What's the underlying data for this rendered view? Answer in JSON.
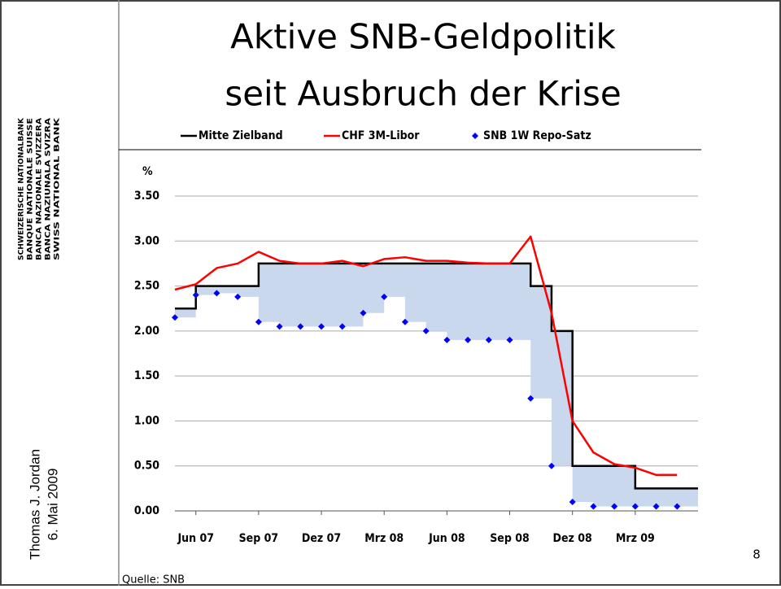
{
  "slide": {
    "logo": [
      "SCHWEIZERISCHE NATIONALBANK",
      "BANQUE NATIONALE SUISSE",
      "BANCA NAZIONALE SVIZZERA",
      "BANCA NAZIUNALA SVIZRA",
      "SWISS NATIONAL BANK"
    ],
    "author": "Thomas J. Jordan",
    "date": "6. Mai 2009",
    "page": "8",
    "source": "Quelle: SNB"
  },
  "chart_data": {
    "type": "line",
    "title": [
      "Aktive SNB-Geldpolitik",
      "seit Ausbruch der Krise"
    ],
    "ylabel": "%",
    "x": [
      "2007-05",
      "2007-06",
      "2007-07",
      "2007-08",
      "2007-09",
      "2007-10",
      "2007-11",
      "2007-12",
      "2008-01",
      "2008-02",
      "2008-03",
      "2008-04",
      "2008-05",
      "2008-06",
      "2008-07",
      "2008-08",
      "2008-09",
      "2008-10",
      "2008-11",
      "2008-12",
      "2009-01",
      "2009-02",
      "2009-03",
      "2009-04",
      "2009-05"
    ],
    "xlim": [
      "2007-05",
      "2009-06"
    ],
    "xticks": [
      {
        "value": "2007-06",
        "label": "Jun 07"
      },
      {
        "value": "2007-09",
        "label": "Sep 07"
      },
      {
        "value": "2007-12",
        "label": "Dez 07"
      },
      {
        "value": "2008-03",
        "label": "Mrz 08"
      },
      {
        "value": "2008-06",
        "label": "Jun 08"
      },
      {
        "value": "2008-09",
        "label": "Sep 08"
      },
      {
        "value": "2008-12",
        "label": "Dez 08"
      },
      {
        "value": "2009-03",
        "label": "Mrz 09"
      }
    ],
    "ylim": [
      0,
      3.5
    ],
    "yticks": [
      {
        "value": 0,
        "label": "0.00"
      },
      {
        "value": 0.5,
        "label": "0.50"
      },
      {
        "value": 1,
        "label": "1.00"
      },
      {
        "value": 1.5,
        "label": "1.50"
      },
      {
        "value": 2,
        "label": "2.00"
      },
      {
        "value": 2.5,
        "label": "2.50"
      },
      {
        "value": 3,
        "label": "3.00"
      },
      {
        "value": 3.5,
        "label": "3.50"
      }
    ],
    "grid": true,
    "area_color": "#c9d8ec",
    "series": [
      {
        "name": "Mitte Zielband",
        "color": "#000000",
        "style": "step",
        "values": [
          2.25,
          2.5,
          2.5,
          2.5,
          2.75,
          2.75,
          2.75,
          2.75,
          2.75,
          2.75,
          2.75,
          2.75,
          2.75,
          2.75,
          2.75,
          2.75,
          2.75,
          2.5,
          2.0,
          0.5,
          0.5,
          0.5,
          0.25,
          0.25,
          0.25
        ]
      },
      {
        "name": "CHF 3M-Libor",
        "color": "#ff0000",
        "style": "line",
        "values": [
          2.46,
          2.52,
          2.7,
          2.75,
          2.88,
          2.78,
          2.75,
          2.75,
          2.78,
          2.72,
          2.8,
          2.82,
          2.78,
          2.78,
          2.76,
          2.75,
          2.75,
          3.05,
          2.2,
          1.0,
          0.65,
          0.52,
          0.48,
          0.4,
          0.4
        ]
      },
      {
        "name": "SNB 1W Repo-Satz",
        "color": "#0000ff",
        "style": "markers",
        "values": [
          2.15,
          2.4,
          2.42,
          2.38,
          2.1,
          2.05,
          2.05,
          2.05,
          2.05,
          2.2,
          2.38,
          2.1,
          2.0,
          1.9,
          1.9,
          1.9,
          1.9,
          1.25,
          0.5,
          0.1,
          0.05,
          0.05,
          0.05,
          0.05,
          0.05
        ]
      }
    ]
  }
}
